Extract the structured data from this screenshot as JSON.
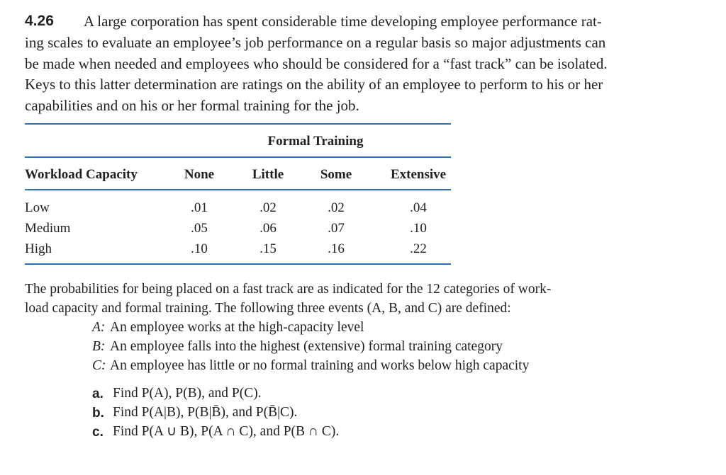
{
  "problem": {
    "number": "4.26",
    "lines": [
      "A large corporation has spent considerable time developing employee performance rat-",
      "ing scales to evaluate an employee’s job performance on a regular basis so major adjustments can",
      "be made when needed and employees who should be considered for a “fast track” can be isolated.",
      "Keys to this latter determination are ratings on the ability of an employee to perform to his or her",
      "capabilities and on his or her formal training for the job."
    ]
  },
  "table": {
    "group_header": "Formal Training",
    "columns": [
      "Workload Capacity",
      "None",
      "Little",
      "Some",
      "Extensive"
    ],
    "rows": [
      [
        "Low",
        ".01",
        ".02",
        ".02",
        ".04"
      ],
      [
        "Medium",
        ".05",
        ".06",
        ".07",
        ".10"
      ],
      [
        "High",
        ".10",
        ".15",
        ".16",
        ".22"
      ]
    ]
  },
  "text": {
    "lines": [
      "The probabilities for being placed on a fast track are as indicated for the 12 categories of work-",
      "load capacity and formal training. The following three events (A, B, and C) are defined:"
    ],
    "events": [
      {
        "label": "A:",
        "text": "An employee works at the high-capacity level"
      },
      {
        "label": "B:",
        "text": "An employee falls into the highest (extensive) formal training category"
      },
      {
        "label": "C:",
        "text": "An employee has little or no formal training and works below high capacity"
      }
    ],
    "parts": [
      {
        "label": "a.",
        "text": "Find P(A), P(B), and P(C)."
      },
      {
        "label": "b.",
        "text": "Find P(A|B), P(B|B̄), and P(B̄|C)."
      },
      {
        "label": "c.",
        "text": "Find P(A ∪ B), P(A ∩ C), and P(B ∩ C)."
      }
    ]
  }
}
